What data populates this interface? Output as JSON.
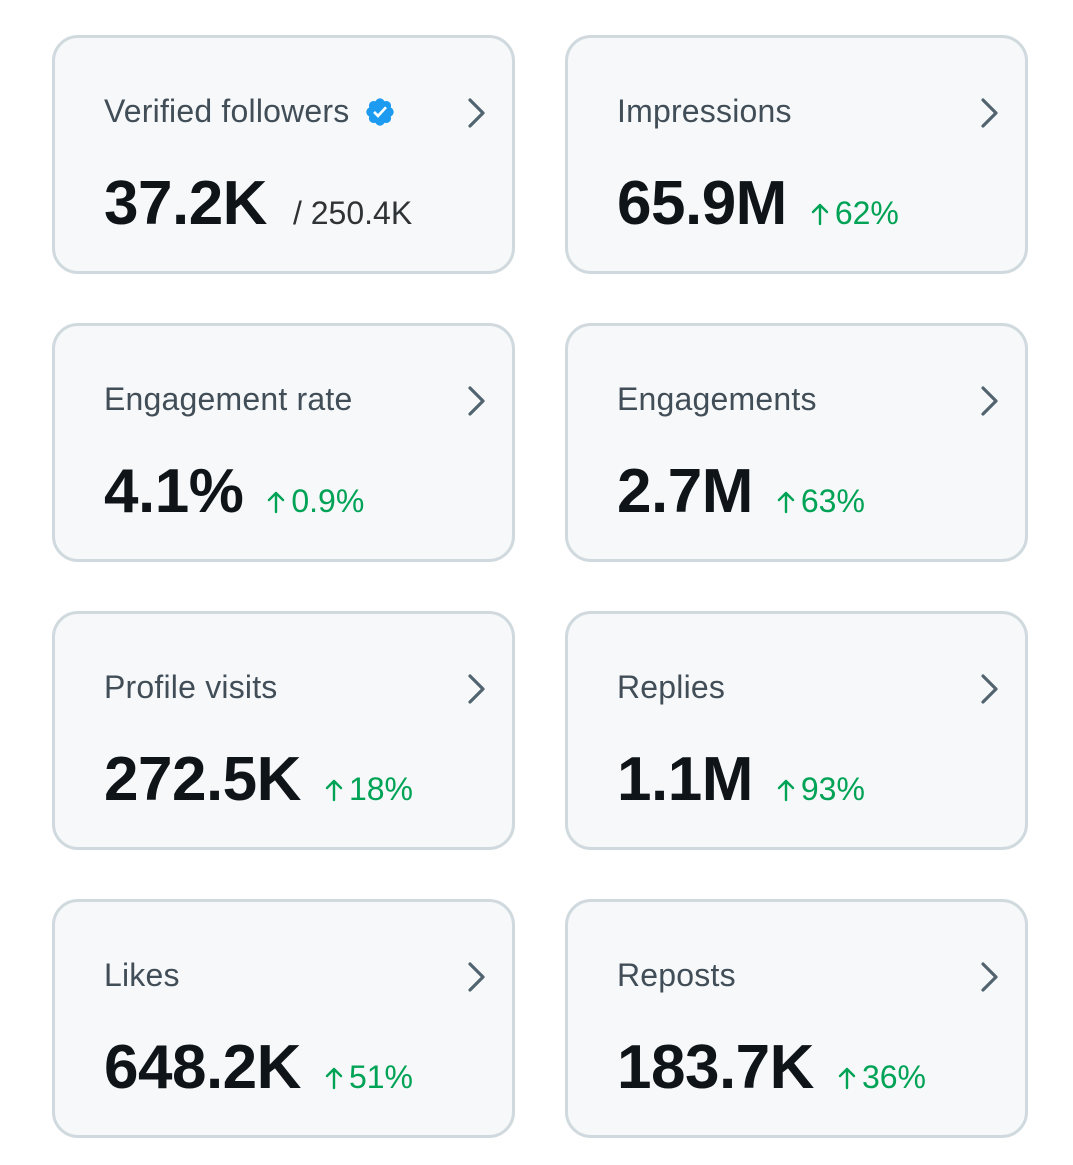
{
  "colors": {
    "card_background": "#f6f8f9",
    "card_border": "#cfd9de",
    "title_text": "#414d57",
    "value_text": "#0f1419",
    "positive_change": "#00a356",
    "verified_badge": "#1d9bf0",
    "chevron": "#536471"
  },
  "cards": [
    {
      "title": "Verified followers",
      "value": "37.2K",
      "secondary": "/ 250.4K",
      "verified_icon": "verified-badge-icon"
    },
    {
      "title": "Impressions",
      "value": "65.9M",
      "change": "62%",
      "change_icon": "arrow-up-icon"
    },
    {
      "title": "Engagement rate",
      "value": "4.1%",
      "change": "0.9%",
      "change_icon": "arrow-up-icon"
    },
    {
      "title": "Engagements",
      "value": "2.7M",
      "change": "63%",
      "change_icon": "arrow-up-icon"
    },
    {
      "title": "Profile visits",
      "value": "272.5K",
      "change": "18%",
      "change_icon": "arrow-up-icon"
    },
    {
      "title": "Replies",
      "value": "1.1M",
      "change": "93%",
      "change_icon": "arrow-up-icon"
    },
    {
      "title": "Likes",
      "value": "648.2K",
      "change": "51%",
      "change_icon": "arrow-up-icon"
    },
    {
      "title": "Reposts",
      "value": "183.7K",
      "change": "36%",
      "change_icon": "arrow-up-icon"
    }
  ]
}
